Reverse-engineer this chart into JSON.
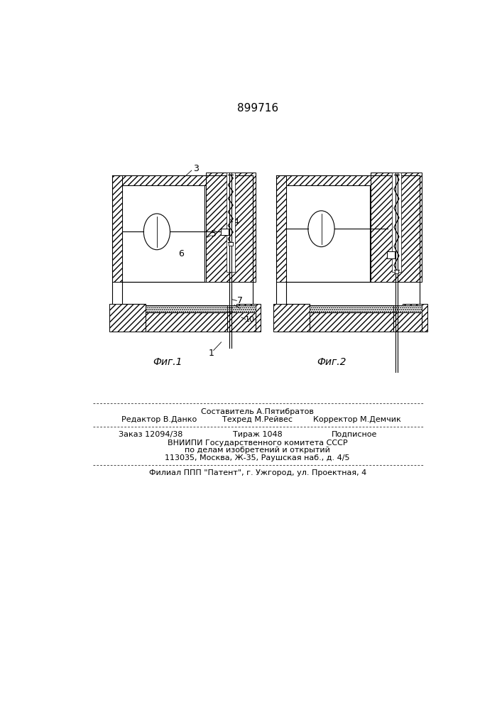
{
  "patent_number": "899716",
  "fig1_label": "Фиг.1",
  "fig2_label": "Фиг.2",
  "footer_line1": "Составитель А.Пятибратов",
  "footer_line2_left": "Редактор В.Данко",
  "footer_line2_mid": "Техред М.Рейвес",
  "footer_line2_right": "Корректор М.Демчик",
  "footer_line3_left": "Заказ 12094/38",
  "footer_line3_mid": "Тираж 1048",
  "footer_line3_right": "Подписное",
  "footer_line4": "ВНИИПИ Государственного комитета СССР",
  "footer_line5": "по делам изобретений и открытий",
  "footer_line6": "113035, Москва, Ж-35, Раушская наб., д. 4/5",
  "footer_line7": "Филиал ППП \"Патент\", г. Ужгород, ул. Проектная, 4",
  "bg_color": "#ffffff"
}
